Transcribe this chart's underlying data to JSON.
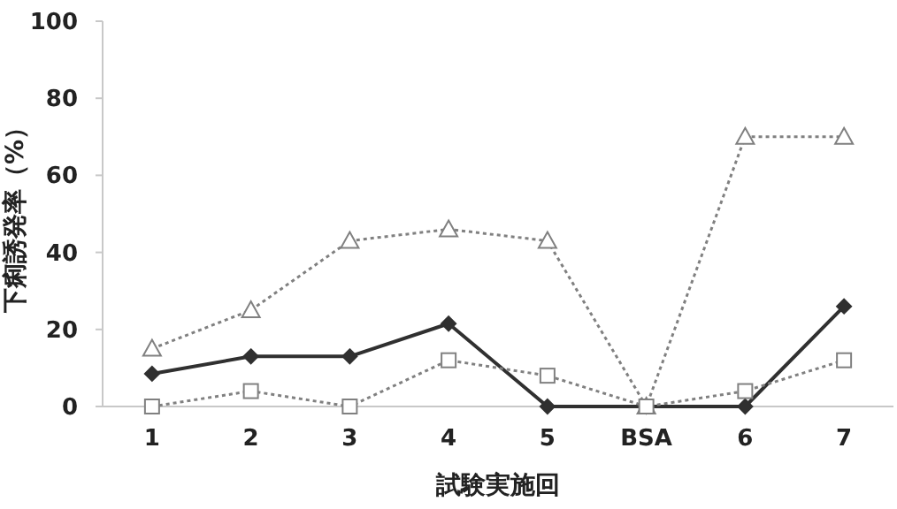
{
  "chart_data": {
    "type": "line",
    "xlabel": "試験実施回",
    "ylabel": "下痢誘発率（%）",
    "categories": [
      "1",
      "2",
      "3",
      "4",
      "5",
      "BSA",
      "6",
      "7"
    ],
    "ylim": [
      0,
      100
    ],
    "yticks": [
      0,
      20,
      40,
      60,
      80,
      100
    ],
    "grid": false,
    "series": [
      {
        "color": "#808080",
        "marker": "triangle",
        "line_style": "dotted",
        "values": [
          15,
          25,
          43,
          46,
          43,
          0,
          70,
          70
        ]
      },
      {
        "color": "#303030",
        "marker": "diamond",
        "line_style": "solid",
        "values": [
          8.5,
          13,
          13,
          21.5,
          0,
          0,
          0,
          26
        ]
      },
      {
        "color": "#808080",
        "marker": "square",
        "line_style": "dotted",
        "values": [
          0,
          4,
          0,
          12,
          8,
          0,
          4,
          12
        ]
      }
    ]
  }
}
